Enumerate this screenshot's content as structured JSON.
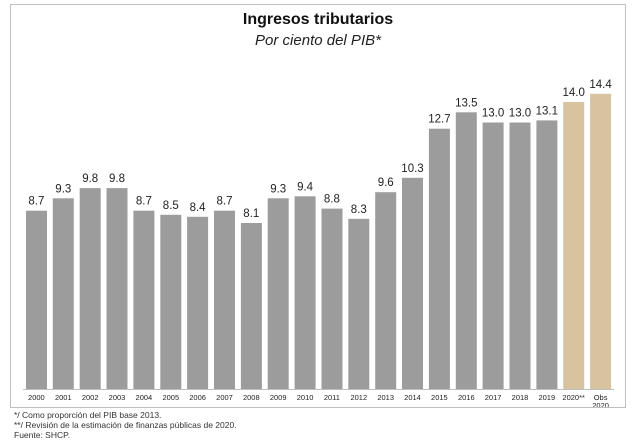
{
  "chart_data": {
    "type": "bar",
    "title": "Ingresos tributarios",
    "subtitle": "Por ciento del PIB*",
    "categories": [
      "2000",
      "2001",
      "2002",
      "2003",
      "2004",
      "2005",
      "2006",
      "2007",
      "2008",
      "2009",
      "2010",
      "2011",
      "2012",
      "2013",
      "2014",
      "2015",
      "2016",
      "2017",
      "2018",
      "2019",
      "2020**",
      "Obs 2020"
    ],
    "values": [
      8.7,
      9.3,
      9.8,
      9.8,
      8.7,
      8.5,
      8.4,
      8.7,
      8.1,
      9.3,
      9.4,
      8.8,
      8.3,
      9.6,
      10.3,
      12.7,
      13.5,
      13.0,
      13.0,
      13.1,
      14.0,
      14.4
    ],
    "value_labels": [
      "8.7",
      "9.3",
      "9.8",
      "9.8",
      "8.7",
      "8.5",
      "8.4",
      "8.7",
      "8.1",
      "9.3",
      "9.4",
      "8.8",
      "8.3",
      "9.6",
      "10.3",
      "12.7",
      "13.5",
      "13.0",
      "13.0",
      "13.1",
      "14.0",
      "14.4"
    ],
    "highlight_from_index": 20,
    "ylim": [
      0,
      16
    ],
    "grid": false,
    "xlabel": "",
    "ylabel": "",
    "colors": {
      "bar": "#9c9c9c",
      "highlight": "#d8c3a0",
      "axis": "#bfbfbf"
    }
  },
  "footnotes": [
    "*/ Como proporción del PIB base 2013.",
    "**/ Revisión de la estimación de finanzas públicas de 2020.",
    "Fuente: SHCP."
  ]
}
